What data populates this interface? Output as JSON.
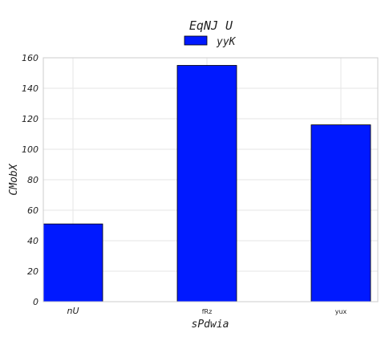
{
  "chart_data": {
    "type": "bar",
    "title": "EqNJ U",
    "xlabel": "sPdwia",
    "ylabel": "CMobX",
    "categories": [
      "nU",
      "fRz",
      "yux"
    ],
    "series": [
      {
        "name": "yyK",
        "values": [
          51,
          155,
          116
        ],
        "color": "#0019ff"
      }
    ],
    "ylim": [
      0,
      160
    ],
    "yticks": [
      0,
      20,
      40,
      60,
      80,
      100,
      120,
      140,
      160
    ],
    "grid": true,
    "legend_position": "top-center"
  }
}
